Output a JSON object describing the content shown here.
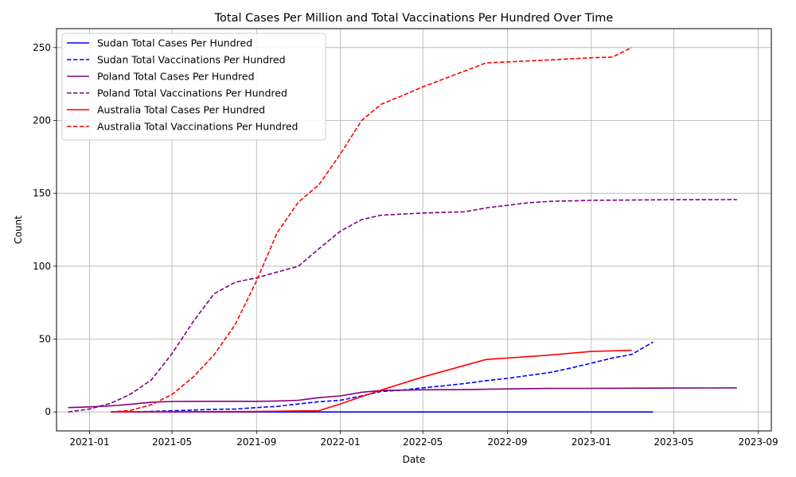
{
  "chart_data": {
    "type": "line",
    "title": "Total Cases Per Million and Total Vaccinations Per Hundred Over Time",
    "xlabel": "Date",
    "ylabel": "Count",
    "xlim": [
      "2020-11-14",
      "2023-09-20"
    ],
    "ylim": [
      -13,
      263
    ],
    "x_ticks": [
      "2021-01",
      "2021-05",
      "2021-09",
      "2022-01",
      "2022-05",
      "2022-09",
      "2023-01",
      "2023-05",
      "2023-09"
    ],
    "y_ticks": [
      0,
      50,
      100,
      150,
      200,
      250
    ],
    "grid": true,
    "legend_position": "upper-left",
    "series": [
      {
        "name": "Sudan Total Cases Per Hundred",
        "color": "#0000ff",
        "dash": "solid",
        "points": [
          [
            "2021-02-01",
            0.0
          ],
          [
            "2021-06-01",
            0.0
          ],
          [
            "2021-10-01",
            0.0
          ],
          [
            "2022-02-01",
            0.0
          ],
          [
            "2022-06-01",
            0.0
          ],
          [
            "2022-10-01",
            0.0
          ],
          [
            "2023-01-01",
            0.0
          ],
          [
            "2023-04-01",
            0.0
          ]
        ]
      },
      {
        "name": "Sudan Total Vaccinations Per Hundred",
        "color": "#0000ff",
        "dash": "dashed",
        "points": [
          [
            "2021-03-01",
            0.0
          ],
          [
            "2021-05-01",
            0.8
          ],
          [
            "2021-07-01",
            1.8
          ],
          [
            "2021-08-01",
            2.0
          ],
          [
            "2021-09-01",
            3.0
          ],
          [
            "2021-10-01",
            3.8
          ],
          [
            "2021-11-01",
            5.5
          ],
          [
            "2021-12-01",
            7.0
          ],
          [
            "2022-01-01",
            8.0
          ],
          [
            "2022-02-01",
            11.0
          ],
          [
            "2022-03-01",
            14.0
          ],
          [
            "2022-04-01",
            15.0
          ],
          [
            "2022-05-01",
            16.5
          ],
          [
            "2022-06-01",
            18.0
          ],
          [
            "2022-07-01",
            19.5
          ],
          [
            "2022-08-01",
            21.5
          ],
          [
            "2022-09-01",
            23.0
          ],
          [
            "2022-10-01",
            25.0
          ],
          [
            "2022-11-01",
            27.0
          ],
          [
            "2022-12-01",
            30.0
          ],
          [
            "2023-01-01",
            33.5
          ],
          [
            "2023-02-01",
            37.0
          ],
          [
            "2023-03-01",
            39.5
          ],
          [
            "2023-04-01",
            48.0
          ]
        ]
      },
      {
        "name": "Poland Total Cases Per Hundred",
        "color": "#800080",
        "dash": "solid",
        "points": [
          [
            "2020-12-01",
            3.0
          ],
          [
            "2021-01-01",
            3.5
          ],
          [
            "2021-02-01",
            4.2
          ],
          [
            "2021-03-01",
            5.2
          ],
          [
            "2021-04-01",
            6.7
          ],
          [
            "2021-05-01",
            7.2
          ],
          [
            "2021-06-01",
            7.3
          ],
          [
            "2021-07-01",
            7.3
          ],
          [
            "2021-08-01",
            7.3
          ],
          [
            "2021-09-01",
            7.3
          ],
          [
            "2021-10-01",
            7.5
          ],
          [
            "2021-11-01",
            8.0
          ],
          [
            "2021-12-01",
            9.8
          ],
          [
            "2022-01-01",
            11.0
          ],
          [
            "2022-02-01",
            13.5
          ],
          [
            "2022-03-01",
            14.7
          ],
          [
            "2022-04-01",
            15.0
          ],
          [
            "2022-05-01",
            15.2
          ],
          [
            "2022-07-01",
            15.3
          ],
          [
            "2022-09-01",
            15.8
          ],
          [
            "2022-11-01",
            16.1
          ],
          [
            "2023-01-01",
            16.2
          ],
          [
            "2023-03-01",
            16.3
          ],
          [
            "2023-05-01",
            16.4
          ],
          [
            "2023-08-01",
            16.5
          ]
        ]
      },
      {
        "name": "Poland Total Vaccinations Per Hundred",
        "color": "#800080",
        "dash": "dashed",
        "points": [
          [
            "2020-12-01",
            0.0
          ],
          [
            "2021-01-01",
            2.0
          ],
          [
            "2021-02-01",
            6.0
          ],
          [
            "2021-03-01",
            12.0
          ],
          [
            "2021-04-01",
            22.0
          ],
          [
            "2021-05-01",
            40.0
          ],
          [
            "2021-06-01",
            62.0
          ],
          [
            "2021-07-01",
            81.0
          ],
          [
            "2021-08-01",
            89.0
          ],
          [
            "2021-09-01",
            92.0
          ],
          [
            "2021-10-01",
            96.0
          ],
          [
            "2021-11-01",
            100.0
          ],
          [
            "2021-12-01",
            112.0
          ],
          [
            "2022-01-01",
            124.0
          ],
          [
            "2022-02-01",
            132.0
          ],
          [
            "2022-03-01",
            135.0
          ],
          [
            "2022-05-01",
            136.5
          ],
          [
            "2022-07-01",
            137.3
          ],
          [
            "2022-08-01",
            140.0
          ],
          [
            "2022-10-01",
            143.5
          ],
          [
            "2022-11-01",
            144.5
          ],
          [
            "2023-01-01",
            145.2
          ],
          [
            "2023-05-01",
            145.6
          ],
          [
            "2023-08-01",
            145.7
          ]
        ]
      },
      {
        "name": "Australia Total Cases Per Hundred",
        "color": "#ff0000",
        "dash": "solid",
        "points": [
          [
            "2021-02-01",
            0.1
          ],
          [
            "2021-05-01",
            0.1
          ],
          [
            "2021-09-01",
            0.3
          ],
          [
            "2021-12-01",
            0.9
          ],
          [
            "2022-01-01",
            5.5
          ],
          [
            "2022-02-01",
            10.5
          ],
          [
            "2022-03-01",
            15.0
          ],
          [
            "2022-05-01",
            24.0
          ],
          [
            "2022-08-01",
            36.0
          ],
          [
            "2022-11-01",
            39.0
          ],
          [
            "2023-01-01",
            41.5
          ],
          [
            "2023-03-01",
            42.3
          ]
        ]
      },
      {
        "name": "Australia Total Vaccinations Per Hundred",
        "color": "#ff0000",
        "dash": "dashed",
        "points": [
          [
            "2021-02-01",
            0.0
          ],
          [
            "2021-03-01",
            1.0
          ],
          [
            "2021-04-01",
            5.0
          ],
          [
            "2021-05-01",
            12.0
          ],
          [
            "2021-06-01",
            24.0
          ],
          [
            "2021-07-01",
            39.0
          ],
          [
            "2021-08-01",
            60.0
          ],
          [
            "2021-09-01",
            90.0
          ],
          [
            "2021-10-01",
            123.0
          ],
          [
            "2021-11-01",
            144.0
          ],
          [
            "2021-12-01",
            156.0
          ],
          [
            "2022-01-01",
            177.0
          ],
          [
            "2022-02-01",
            200.0
          ],
          [
            "2022-03-01",
            211.0
          ],
          [
            "2022-04-01",
            217.0
          ],
          [
            "2022-05-01",
            223.0
          ],
          [
            "2022-08-01",
            239.5
          ],
          [
            "2022-11-01",
            241.5
          ],
          [
            "2023-01-01",
            243.0
          ],
          [
            "2023-02-01",
            243.5
          ],
          [
            "2023-03-01",
            250.0
          ]
        ]
      }
    ]
  }
}
